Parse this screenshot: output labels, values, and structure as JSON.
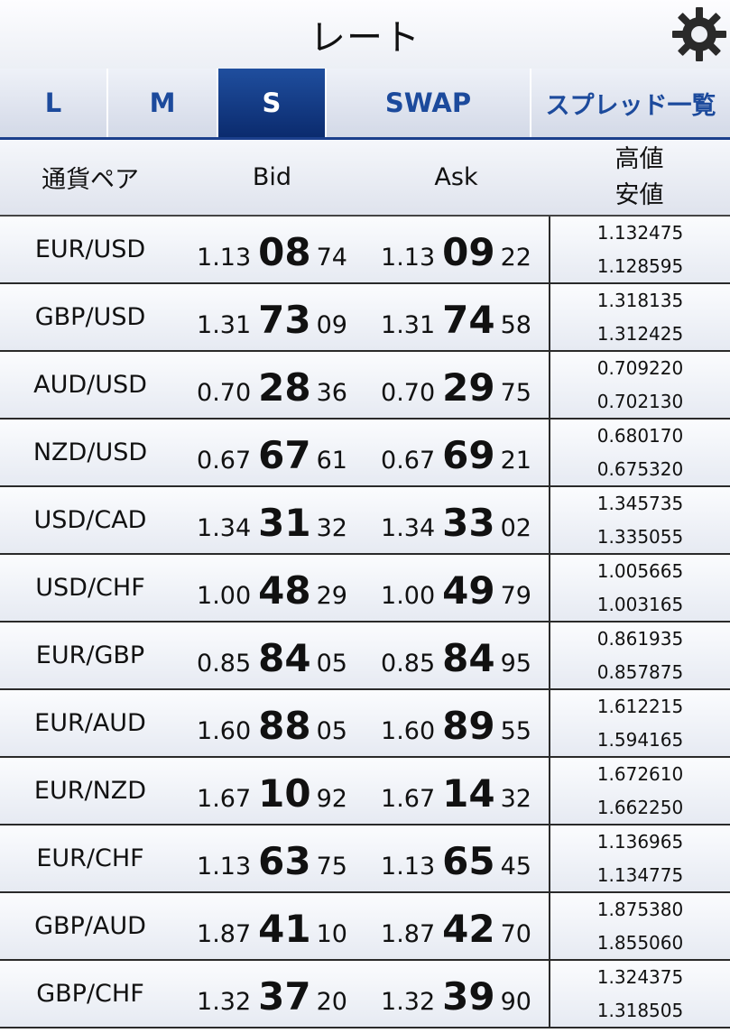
{
  "header": {
    "title": "レート",
    "settings_icon": "gear-icon"
  },
  "tabs": [
    {
      "label": "L",
      "active": false
    },
    {
      "label": "M",
      "active": false
    },
    {
      "label": "S",
      "active": true
    },
    {
      "label": "SWAP",
      "active": false
    },
    {
      "label": "スプレッド一覧",
      "active": false
    }
  ],
  "columns": {
    "pair": "通貨ペア",
    "bid": "Bid",
    "ask": "Ask",
    "high": "高値",
    "low": "安値"
  },
  "rows": [
    {
      "pair": "EUR/USD",
      "bid": {
        "pre": "1.13",
        "big": "08",
        "post": "74"
      },
      "ask": {
        "pre": "1.13",
        "big": "09",
        "post": "22"
      },
      "high": "1.132475",
      "low": "1.128595"
    },
    {
      "pair": "GBP/USD",
      "bid": {
        "pre": "1.31",
        "big": "73",
        "post": "09"
      },
      "ask": {
        "pre": "1.31",
        "big": "74",
        "post": "58"
      },
      "high": "1.318135",
      "low": "1.312425"
    },
    {
      "pair": "AUD/USD",
      "bid": {
        "pre": "0.70",
        "big": "28",
        "post": "36"
      },
      "ask": {
        "pre": "0.70",
        "big": "29",
        "post": "75"
      },
      "high": "0.709220",
      "low": "0.702130"
    },
    {
      "pair": "NZD/USD",
      "bid": {
        "pre": "0.67",
        "big": "67",
        "post": "61"
      },
      "ask": {
        "pre": "0.67",
        "big": "69",
        "post": "21"
      },
      "high": "0.680170",
      "low": "0.675320"
    },
    {
      "pair": "USD/CAD",
      "bid": {
        "pre": "1.34",
        "big": "31",
        "post": "32"
      },
      "ask": {
        "pre": "1.34",
        "big": "33",
        "post": "02"
      },
      "high": "1.345735",
      "low": "1.335055"
    },
    {
      "pair": "USD/CHF",
      "bid": {
        "pre": "1.00",
        "big": "48",
        "post": "29"
      },
      "ask": {
        "pre": "1.00",
        "big": "49",
        "post": "79"
      },
      "high": "1.005665",
      "low": "1.003165"
    },
    {
      "pair": "EUR/GBP",
      "bid": {
        "pre": "0.85",
        "big": "84",
        "post": "05"
      },
      "ask": {
        "pre": "0.85",
        "big": "84",
        "post": "95"
      },
      "high": "0.861935",
      "low": "0.857875"
    },
    {
      "pair": "EUR/AUD",
      "bid": {
        "pre": "1.60",
        "big": "88",
        "post": "05"
      },
      "ask": {
        "pre": "1.60",
        "big": "89",
        "post": "55"
      },
      "high": "1.612215",
      "low": "1.594165"
    },
    {
      "pair": "EUR/NZD",
      "bid": {
        "pre": "1.67",
        "big": "10",
        "post": "92"
      },
      "ask": {
        "pre": "1.67",
        "big": "14",
        "post": "32"
      },
      "high": "1.672610",
      "low": "1.662250"
    },
    {
      "pair": "EUR/CHF",
      "bid": {
        "pre": "1.13",
        "big": "63",
        "post": "75"
      },
      "ask": {
        "pre": "1.13",
        "big": "65",
        "post": "45"
      },
      "high": "1.136965",
      "low": "1.134775"
    },
    {
      "pair": "GBP/AUD",
      "bid": {
        "pre": "1.87",
        "big": "41",
        "post": "10"
      },
      "ask": {
        "pre": "1.87",
        "big": "42",
        "post": "70"
      },
      "high": "1.875380",
      "low": "1.855060"
    },
    {
      "pair": "GBP/CHF",
      "bid": {
        "pre": "1.32",
        "big": "37",
        "post": "20"
      },
      "ask": {
        "pre": "1.32",
        "big": "39",
        "post": "90"
      },
      "high": "1.324375",
      "low": "1.318505"
    }
  ]
}
